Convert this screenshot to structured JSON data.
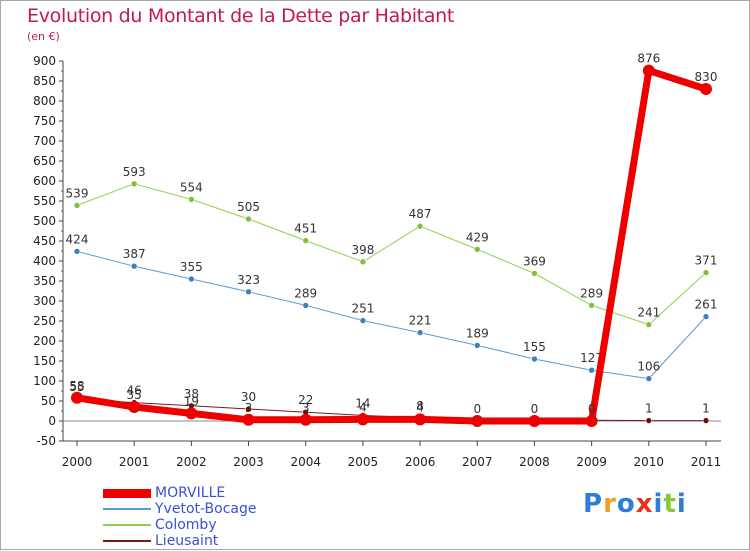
{
  "header": {
    "title": "Evolution du Montant de la Dette par Habitant",
    "subtitle": "(en €)"
  },
  "logo": {
    "letters": [
      {
        "ch": "P",
        "color": "#2e7dd6"
      },
      {
        "ch": "r",
        "color": "#f0a020"
      },
      {
        "ch": "o",
        "color": "#2e7dd6"
      },
      {
        "ch": "x",
        "color": "#e8331c"
      },
      {
        "ch": "i",
        "color": "#2e7dd6"
      },
      {
        "ch": "t",
        "color": "#8cc63f"
      },
      {
        "ch": "i",
        "color": "#2e7dd6"
      }
    ]
  },
  "chart_data": {
    "type": "line",
    "title": "Evolution du Montant de la Dette par Habitant",
    "subtitle": "(en €)",
    "x": [
      "2000",
      "2001",
      "2002",
      "2003",
      "2004",
      "2005",
      "2006",
      "2007",
      "2008",
      "2009",
      "2010",
      "2011"
    ],
    "ylim": [
      -50,
      900
    ],
    "yticks": [
      -50,
      0,
      50,
      100,
      150,
      200,
      250,
      300,
      350,
      400,
      450,
      500,
      550,
      600,
      650,
      700,
      750,
      800,
      850,
      900
    ],
    "grid": false,
    "legend_position": "bottom-left",
    "series": [
      {
        "name": "Lieusaint",
        "color": "#7a1a1a",
        "marker": "#6b1010",
        "width": 1,
        "values": [
          55,
          46,
          38,
          30,
          22,
          14,
          8,
          5,
          3,
          2,
          1,
          1
        ],
        "labels": [
          "55",
          "46",
          "38",
          "30",
          "22",
          "14",
          "8",
          "5",
          "3",
          "2",
          "1",
          "1"
        ],
        "show_label": [
          true,
          true,
          true,
          true,
          true,
          true,
          true,
          false,
          false,
          false,
          true,
          true
        ]
      },
      {
        "name": "Colomby",
        "color": "#8fd14f",
        "marker": "#7cc33a",
        "width": 1,
        "values": [
          539,
          593,
          554,
          505,
          451,
          398,
          487,
          429,
          369,
          289,
          241,
          371
        ],
        "labels": [
          "539",
          "593",
          "554",
          "505",
          "451",
          "398",
          "487",
          "429",
          "369",
          "289",
          "241",
          "371"
        ],
        "show_label": [
          true,
          true,
          true,
          true,
          true,
          true,
          true,
          true,
          true,
          true,
          true,
          true
        ]
      },
      {
        "name": "Yvetot-Bocage",
        "color": "#5b9bd5",
        "marker": "#3b7fc4",
        "width": 1,
        "values": [
          424,
          387,
          355,
          323,
          289,
          251,
          221,
          189,
          155,
          127,
          106,
          261
        ],
        "labels": [
          "424",
          "387",
          "355",
          "323",
          "289",
          "251",
          "221",
          "189",
          "155",
          "127",
          "106",
          "261"
        ],
        "show_label": [
          true,
          true,
          true,
          true,
          true,
          true,
          true,
          true,
          true,
          true,
          true,
          true
        ]
      },
      {
        "name": "MORVILLE",
        "color": "#ee0000",
        "marker": "#ee0000",
        "width": 7,
        "values": [
          58,
          35,
          19,
          3,
          3,
          4,
          4,
          0,
          0,
          0,
          876,
          830
        ],
        "labels": [
          "58",
          "35",
          "19",
          "3",
          "3",
          "4",
          "4",
          "0",
          "0",
          "0",
          "876",
          "830"
        ],
        "show_label": [
          true,
          true,
          true,
          true,
          true,
          true,
          true,
          true,
          true,
          true,
          true,
          true
        ]
      }
    ],
    "legend": [
      "MORVILLE",
      "Yvetot-Bocage",
      "Colomby",
      "Lieusaint"
    ]
  }
}
